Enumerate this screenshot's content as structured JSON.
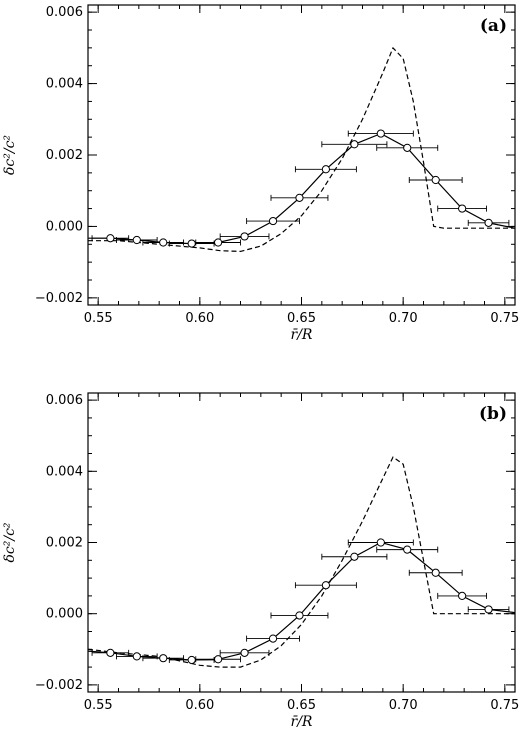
{
  "chart_data": [
    {
      "type": "line",
      "panel_label": "(a)",
      "xlabel": "r̄/R",
      "ylabel": "δc²/c²",
      "xlim": [
        0.545,
        0.755
      ],
      "ylim": [
        -0.0022,
        0.0062
      ],
      "x_ticks": [
        0.55,
        0.6,
        0.65,
        0.7,
        0.75
      ],
      "x_tick_labels": [
        "0.55",
        "0.60",
        "0.65",
        "0.70",
        "0.75"
      ],
      "y_ticks": [
        -0.002,
        0.0,
        0.002,
        0.004,
        0.006
      ],
      "y_tick_labels": [
        "−0.002",
        "0.000",
        "0.002",
        "0.004",
        "0.006"
      ],
      "series": [
        {
          "style": "dashed",
          "x": [
            0.545,
            0.56,
            0.58,
            0.6,
            0.61,
            0.62,
            0.63,
            0.64,
            0.65,
            0.66,
            0.67,
            0.68,
            0.69,
            0.695,
            0.7,
            0.705,
            0.71,
            0.715,
            0.72,
            0.74,
            0.755
          ],
          "y": [
            -0.0004,
            -0.0004,
            -0.0005,
            -0.0006,
            -0.00068,
            -0.0007,
            -0.00055,
            -0.0002,
            0.0003,
            0.001,
            0.0019,
            0.003,
            0.0043,
            0.005,
            0.0047,
            0.0035,
            0.0018,
            0.0,
            -5e-05,
            -5e-05,
            -5e-05
          ]
        },
        {
          "style": "solid-with-errorbars",
          "x": [
            0.545,
            0.556,
            0.569,
            0.582,
            0.596,
            0.609,
            0.622,
            0.636,
            0.649,
            0.662,
            0.676,
            0.689,
            0.702,
            0.716,
            0.729,
            0.742,
            0.755
          ],
          "y": [
            -0.00033,
            -0.00033,
            -0.00038,
            -0.00045,
            -0.00048,
            -0.00045,
            -0.00028,
            0.00015,
            0.0008,
            0.0016,
            0.0023,
            0.0026,
            0.0022,
            0.0013,
            0.0005,
            0.0001,
            -5e-05
          ],
          "markers": [
            false,
            true,
            true,
            true,
            true,
            true,
            true,
            true,
            true,
            true,
            true,
            true,
            true,
            true,
            true,
            true,
            false
          ],
          "x_err": [
            0,
            0.009,
            0.01,
            0.01,
            0.011,
            0.011,
            0.012,
            0.013,
            0.014,
            0.015,
            0.016,
            0.016,
            0.015,
            0.013,
            0.012,
            0.01,
            0
          ]
        }
      ]
    },
    {
      "type": "line",
      "panel_label": "(b)",
      "xlabel": "r̄/R",
      "ylabel": "δc²/c²",
      "xlim": [
        0.545,
        0.755
      ],
      "ylim": [
        -0.0022,
        0.0062
      ],
      "x_ticks": [
        0.55,
        0.6,
        0.65,
        0.7,
        0.75
      ],
      "x_tick_labels": [
        "0.55",
        "0.60",
        "0.65",
        "0.70",
        "0.75"
      ],
      "y_ticks": [
        -0.002,
        0.0,
        0.002,
        0.004,
        0.006
      ],
      "y_tick_labels": [
        "−0.002",
        "0.000",
        "0.002",
        "0.004",
        "0.006"
      ],
      "series": [
        {
          "style": "dashed",
          "x": [
            0.545,
            0.56,
            0.58,
            0.6,
            0.61,
            0.62,
            0.63,
            0.64,
            0.65,
            0.66,
            0.67,
            0.68,
            0.69,
            0.695,
            0.7,
            0.705,
            0.71,
            0.715,
            0.72,
            0.74,
            0.755
          ],
          "y": [
            -0.001,
            -0.0011,
            -0.0012,
            -0.00145,
            -0.0015,
            -0.0015,
            -0.0013,
            -0.0009,
            -0.0003,
            0.0005,
            0.0015,
            0.0026,
            0.0038,
            0.0044,
            0.0042,
            0.003,
            0.0015,
            0.0,
            0.0,
            0.0,
            0.0
          ]
        },
        {
          "style": "solid-with-errorbars",
          "x": [
            0.545,
            0.556,
            0.569,
            0.582,
            0.596,
            0.609,
            0.622,
            0.636,
            0.649,
            0.662,
            0.676,
            0.689,
            0.702,
            0.716,
            0.729,
            0.742,
            0.755
          ],
          "y": [
            -0.00105,
            -0.0011,
            -0.0012,
            -0.00125,
            -0.0013,
            -0.00128,
            -0.0011,
            -0.0007,
            -5e-05,
            0.0008,
            0.0016,
            0.002,
            0.0018,
            0.00115,
            0.0005,
            0.00012,
            3e-05
          ],
          "markers": [
            false,
            true,
            true,
            true,
            true,
            true,
            true,
            true,
            true,
            true,
            true,
            true,
            true,
            true,
            true,
            true,
            false
          ],
          "x_err": [
            0,
            0.009,
            0.01,
            0.01,
            0.011,
            0.011,
            0.012,
            0.013,
            0.014,
            0.015,
            0.016,
            0.016,
            0.015,
            0.013,
            0.012,
            0.01,
            0
          ]
        }
      ]
    }
  ]
}
